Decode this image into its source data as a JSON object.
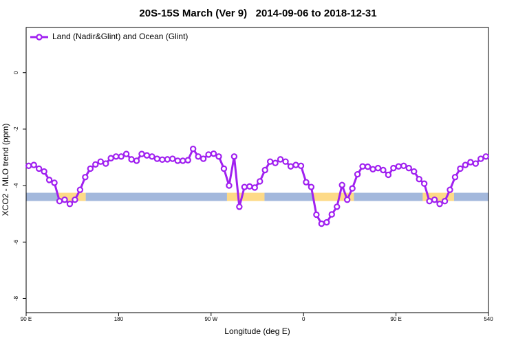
{
  "chart_data": {
    "type": "line",
    "title": "20S-15S March (Ver 9)   2014-09-06 to 2018-12-31",
    "x_label": "Longitude (deg E)",
    "y_label": "XCO2 - MLO trend (ppm)",
    "xlim": [
      90,
      540
    ],
    "xticks": [
      {
        "value": 90,
        "label": "90 E"
      },
      180,
      {
        "value": 270,
        "label": "90 W"
      },
      {
        "value": 360,
        "label": "0"
      },
      {
        "value": 450,
        "label": "90 E"
      },
      540
    ],
    "ylim": [
      -8.5,
      1.6
    ],
    "yticks": [
      0,
      -2,
      -4,
      -6,
      -8
    ],
    "legend": "top-left",
    "series": [
      {
        "name": "Land (Nadir&Glint) and Ocean (Glint)",
        "color": "#a020f0",
        "x": [
          92.5,
          97.5,
          102.5,
          107.5,
          112.5,
          117.5,
          122.5,
          127.5,
          132.5,
          137.5,
          142.5,
          147.5,
          152.5,
          157.5,
          162.5,
          167.5,
          172.5,
          177.5,
          182.5,
          187.5,
          192.5,
          197.5,
          202.5,
          207.5,
          212.5,
          217.5,
          222.5,
          227.5,
          232.5,
          237.5,
          242.5,
          247.5,
          252.5,
          257.5,
          262.5,
          267.5,
          272.5,
          277.5,
          282.5,
          287.5,
          292.5,
          297.5,
          302.5,
          307.5,
          312.5,
          317.5,
          322.5,
          327.5,
          332.5,
          337.5,
          342.5,
          347.5,
          352.5,
          357.5,
          362.5,
          367.5,
          372.5,
          377.5,
          382.5,
          387.5,
          392.5,
          397.5,
          402.5,
          407.5,
          412.5,
          417.5,
          422.5,
          427.5,
          432.5,
          437.5,
          442.5,
          447.5,
          452.5,
          457.5,
          462.5,
          467.5,
          472.5,
          477.5,
          482.5,
          487.5,
          492.5,
          497.5,
          502.5,
          507.5,
          512.5,
          517.5,
          522.5,
          527.5,
          532.5,
          537.5
        ],
        "values": [
          -3.3,
          -3.27,
          -3.4,
          -3.5,
          -3.8,
          -3.9,
          -4.55,
          -4.5,
          -4.65,
          -4.5,
          -4.15,
          -3.7,
          -3.4,
          -3.25,
          -3.15,
          -3.22,
          -3.03,
          -2.97,
          -2.97,
          -2.88,
          -3.07,
          -3.12,
          -2.88,
          -2.93,
          -2.97,
          -3.05,
          -3.08,
          -3.07,
          -3.05,
          -3.12,
          -3.12,
          -3.1,
          -2.7,
          -2.97,
          -3.05,
          -2.9,
          -2.87,
          -2.97,
          -3.4,
          -4.0,
          -2.97,
          -4.75,
          -4.05,
          -4.03,
          -4.07,
          -3.85,
          -3.45,
          -3.15,
          -3.2,
          -3.07,
          -3.15,
          -3.32,
          -3.27,
          -3.3,
          -3.88,
          -4.05,
          -5.03,
          -5.35,
          -5.3,
          -5.02,
          -4.75,
          -3.98,
          -4.5,
          -4.1,
          -3.6,
          -3.32,
          -3.33,
          -3.42,
          -3.38,
          -3.45,
          -3.62,
          -3.38,
          -3.32,
          -3.3,
          -3.38,
          -3.5,
          -3.77,
          -3.93,
          -4.55,
          -4.5,
          -4.65,
          -4.55,
          -4.15,
          -3.7,
          -3.4,
          -3.27,
          -3.17,
          -3.22,
          -3.05,
          -2.97
        ]
      }
    ],
    "surface_band": {
      "y": -4.4,
      "segments": [
        {
          "xlim": [
            90,
            121.5
          ],
          "color": "#a3b8dc"
        },
        {
          "xlim": [
            121.5,
            148
          ],
          "color": "#fdda87"
        },
        {
          "xlim": [
            148,
            285.5
          ],
          "color": "#a3b8dc"
        },
        {
          "xlim": [
            285.5,
            322
          ],
          "color": "#fdda87"
        },
        {
          "xlim": [
            322,
            369
          ],
          "color": "#a3b8dc"
        },
        {
          "xlim": [
            369,
            409
          ],
          "color": "#fdda87"
        },
        {
          "xlim": [
            409,
            476
          ],
          "color": "#a3b8dc"
        },
        {
          "xlim": [
            476,
            506.5
          ],
          "color": "#fdda87"
        },
        {
          "xlim": [
            506.5,
            540
          ],
          "color": "#a3b8dc"
        }
      ]
    }
  }
}
